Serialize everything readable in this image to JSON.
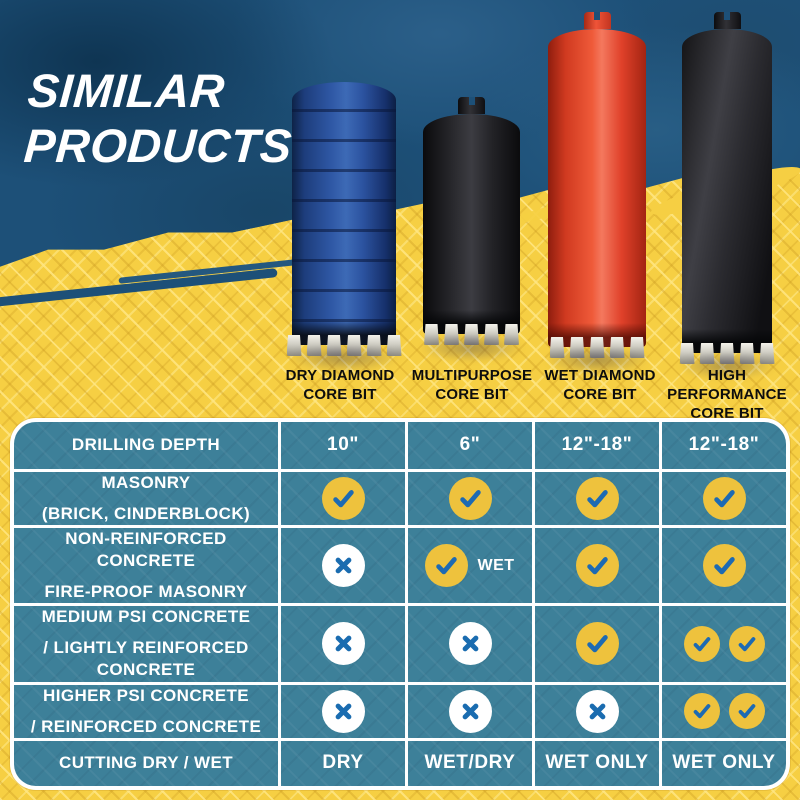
{
  "hero": {
    "title_line1": "SIMILAR",
    "title_line2": "PRODUCTS"
  },
  "products": [
    {
      "label_line1": "DRY DIAMOND",
      "label_line2": "CORE BIT",
      "color": "#2f58a5"
    },
    {
      "label_line1": "MULTIPURPOSE",
      "label_line2": "CORE BIT",
      "color": "#232327"
    },
    {
      "label_line1": "WET DIAMOND",
      "label_line2": "CORE BIT",
      "color": "#e8472b"
    },
    {
      "label_line1": "HIGH PERFORMANCE",
      "label_line2": "CORE BIT",
      "color": "#1b1b1f"
    }
  ],
  "table": {
    "rows": [
      {
        "label_lines": [
          "DRILLING DEPTH"
        ],
        "cells": [
          {
            "type": "text",
            "value": "10\""
          },
          {
            "type": "text",
            "value": "6\""
          },
          {
            "type": "text",
            "value": "12\"-18\""
          },
          {
            "type": "text",
            "value": "12\"-18\""
          }
        ]
      },
      {
        "label_lines": [
          "MASONRY",
          "(BRICK, CINDERBLOCK)"
        ],
        "cells": [
          {
            "type": "check"
          },
          {
            "type": "check"
          },
          {
            "type": "check"
          },
          {
            "type": "check"
          }
        ]
      },
      {
        "label_lines": [
          "NON-REINFORCED CONCRETE",
          "FIRE-PROOF MASONRY"
        ],
        "cells": [
          {
            "type": "x"
          },
          {
            "type": "check",
            "suffix": "WET"
          },
          {
            "type": "check"
          },
          {
            "type": "check"
          }
        ]
      },
      {
        "label_lines": [
          "MEDIUM PSI CONCRETE",
          "/ LIGHTLY REINFORCED CONCRETE"
        ],
        "cells": [
          {
            "type": "x"
          },
          {
            "type": "x"
          },
          {
            "type": "check"
          },
          {
            "type": "check-double"
          }
        ]
      },
      {
        "label_lines": [
          "HIGHER PSI CONCRETE",
          "/ REINFORCED CONCRETE"
        ],
        "cells": [
          {
            "type": "x"
          },
          {
            "type": "x"
          },
          {
            "type": "x"
          },
          {
            "type": "check-double"
          }
        ]
      },
      {
        "label_lines": [
          "CUTTING DRY / WET"
        ],
        "cells": [
          {
            "type": "text",
            "value": "DRY"
          },
          {
            "type": "text",
            "value": "WET/DRY"
          },
          {
            "type": "text",
            "value": "WET ONLY"
          },
          {
            "type": "text",
            "value": "WET ONLY"
          }
        ]
      }
    ]
  },
  "icons": {
    "check": "check-icon",
    "x": "x-icon"
  },
  "colors": {
    "background_yellow": "#f6cf43",
    "hero_blue": "#1d5078",
    "cell_teal": "#3d8099",
    "grid_line": "#ffffff",
    "check_circle": "#eec23d",
    "check_mark": "#1d6ab3",
    "x_circle": "#ffffff",
    "x_mark": "#1a6cb0",
    "title_text": "#ffffff",
    "product_label_text": "#0d0d0d",
    "cell_text": "#ffffff"
  }
}
